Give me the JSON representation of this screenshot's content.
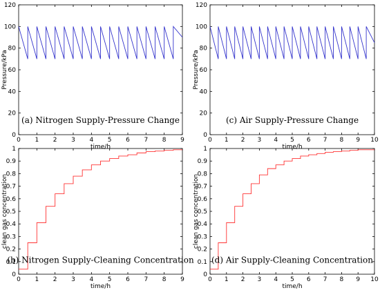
{
  "chart_data": [
    {
      "type": "line",
      "annotation": "(a) Nitrogen Supply-Pressure Change",
      "xlabel": "time/h",
      "ylabel": "Pressure/kPa",
      "xlim": [
        0,
        9
      ],
      "ylim": [
        0,
        120
      ],
      "xticks": [
        0,
        1,
        2,
        3,
        4,
        5,
        6,
        7,
        8,
        9
      ],
      "yticks": [
        0,
        20,
        40,
        60,
        80,
        100,
        120
      ],
      "grid": false,
      "color": "#3333cc",
      "series": [
        {
          "x": [
            0,
            0.5,
            0.5,
            1.0,
            1.0,
            1.5,
            1.5,
            2.0,
            2.0,
            2.5,
            2.5,
            3.0,
            3.0,
            3.5,
            3.5,
            4.0,
            4.0,
            4.5,
            4.5,
            5.0,
            5.0,
            5.5,
            5.5,
            6.0,
            6.0,
            6.5,
            6.5,
            7.0,
            7.0,
            7.5,
            7.5,
            8.0,
            8.0,
            8.5,
            8.5,
            9.0
          ],
          "y": [
            100,
            70,
            100,
            70,
            100,
            70,
            100,
            70,
            100,
            70,
            100,
            70,
            100,
            70,
            100,
            70,
            100,
            70,
            100,
            70,
            100,
            70,
            100,
            70,
            100,
            70,
            100,
            70,
            100,
            70,
            100,
            70,
            100,
            70,
            100,
            90
          ]
        }
      ]
    },
    {
      "type": "line",
      "annotation": "(c) Air Supply-Pressure Change",
      "xlabel": "time/h",
      "ylabel": "Pressure/kPa",
      "xlim": [
        0,
        10
      ],
      "ylim": [
        0,
        120
      ],
      "xticks": [
        0,
        1,
        2,
        3,
        4,
        5,
        6,
        7,
        8,
        9,
        10
      ],
      "yticks": [
        0,
        20,
        40,
        60,
        80,
        100,
        120
      ],
      "grid": false,
      "color": "#3333cc",
      "series": [
        {
          "x": [
            0,
            0.5,
            0.5,
            1.0,
            1.0,
            1.5,
            1.5,
            2.0,
            2.0,
            2.5,
            2.5,
            3.0,
            3.0,
            3.5,
            3.5,
            4.0,
            4.0,
            4.5,
            4.5,
            5.0,
            5.0,
            5.5,
            5.5,
            6.0,
            6.0,
            6.5,
            6.5,
            7.0,
            7.0,
            7.5,
            7.5,
            8.0,
            8.0,
            8.5,
            8.5,
            9.0,
            9.0,
            9.5,
            9.5,
            10.0
          ],
          "y": [
            100,
            70,
            100,
            70,
            100,
            70,
            100,
            70,
            100,
            70,
            100,
            70,
            100,
            70,
            100,
            70,
            100,
            70,
            100,
            70,
            100,
            70,
            100,
            70,
            100,
            70,
            100,
            70,
            100,
            70,
            100,
            70,
            100,
            70,
            100,
            70,
            100,
            70,
            100,
            85
          ]
        }
      ]
    },
    {
      "type": "line",
      "annotation": "(b) Nitrogen Supply-Cleaning Concentration",
      "xlabel": "time/h",
      "ylabel": "clean gas concentration",
      "xlim": [
        0,
        9
      ],
      "ylim": [
        0,
        1
      ],
      "xticks": [
        0,
        1,
        2,
        3,
        4,
        5,
        6,
        7,
        8,
        9
      ],
      "yticks": [
        0,
        0.1,
        0.2,
        0.3,
        0.4,
        0.5,
        0.6,
        0.7,
        0.8,
        0.9,
        1
      ],
      "grid": false,
      "color": "#ff3333",
      "series": [
        {
          "x": [
            0,
            0.5,
            0.5,
            1.0,
            1.0,
            1.5,
            1.5,
            2.0,
            2.0,
            2.5,
            2.5,
            3.0,
            3.0,
            3.5,
            3.5,
            4.0,
            4.0,
            4.5,
            4.5,
            5.0,
            5.0,
            5.5,
            5.5,
            6.0,
            6.0,
            6.5,
            6.5,
            7.0,
            7.0,
            7.5,
            7.5,
            8.0,
            8.0,
            8.5,
            8.5,
            9.0
          ],
          "y": [
            0.04,
            0.04,
            0.25,
            0.25,
            0.41,
            0.41,
            0.54,
            0.54,
            0.64,
            0.64,
            0.72,
            0.72,
            0.78,
            0.78,
            0.83,
            0.83,
            0.87,
            0.87,
            0.9,
            0.9,
            0.92,
            0.92,
            0.94,
            0.94,
            0.95,
            0.95,
            0.965,
            0.965,
            0.975,
            0.975,
            0.98,
            0.98,
            0.985,
            0.985,
            0.99,
            0.99
          ]
        }
      ]
    },
    {
      "type": "line",
      "annotation": "(d) Air Supply-Cleaning Concentration",
      "xlabel": "time/h",
      "ylabel": "clean gas concentration",
      "xlim": [
        0,
        10
      ],
      "ylim": [
        0,
        1
      ],
      "xticks": [
        0,
        1,
        2,
        3,
        4,
        5,
        6,
        7,
        8,
        9,
        10
      ],
      "yticks": [
        0,
        0.1,
        0.2,
        0.3,
        0.4,
        0.5,
        0.6,
        0.7,
        0.8,
        0.9,
        1
      ],
      "grid": false,
      "color": "#ff3333",
      "series": [
        {
          "x": [
            0,
            0.5,
            0.5,
            1.0,
            1.0,
            1.5,
            1.5,
            2.0,
            2.0,
            2.5,
            2.5,
            3.0,
            3.0,
            3.5,
            3.5,
            4.0,
            4.0,
            4.5,
            4.5,
            5.0,
            5.0,
            5.5,
            5.5,
            6.0,
            6.0,
            6.5,
            6.5,
            7.0,
            7.0,
            7.5,
            7.5,
            8.0,
            8.0,
            8.5,
            8.5,
            9.0,
            9.0,
            9.5,
            9.5,
            10.0
          ],
          "y": [
            0.04,
            0.04,
            0.25,
            0.25,
            0.41,
            0.41,
            0.54,
            0.54,
            0.64,
            0.64,
            0.72,
            0.72,
            0.79,
            0.79,
            0.84,
            0.84,
            0.87,
            0.87,
            0.9,
            0.9,
            0.92,
            0.92,
            0.94,
            0.94,
            0.95,
            0.95,
            0.96,
            0.96,
            0.97,
            0.97,
            0.975,
            0.975,
            0.98,
            0.98,
            0.985,
            0.985,
            0.99,
            0.99,
            0.99,
            0.99
          ]
        }
      ]
    }
  ]
}
